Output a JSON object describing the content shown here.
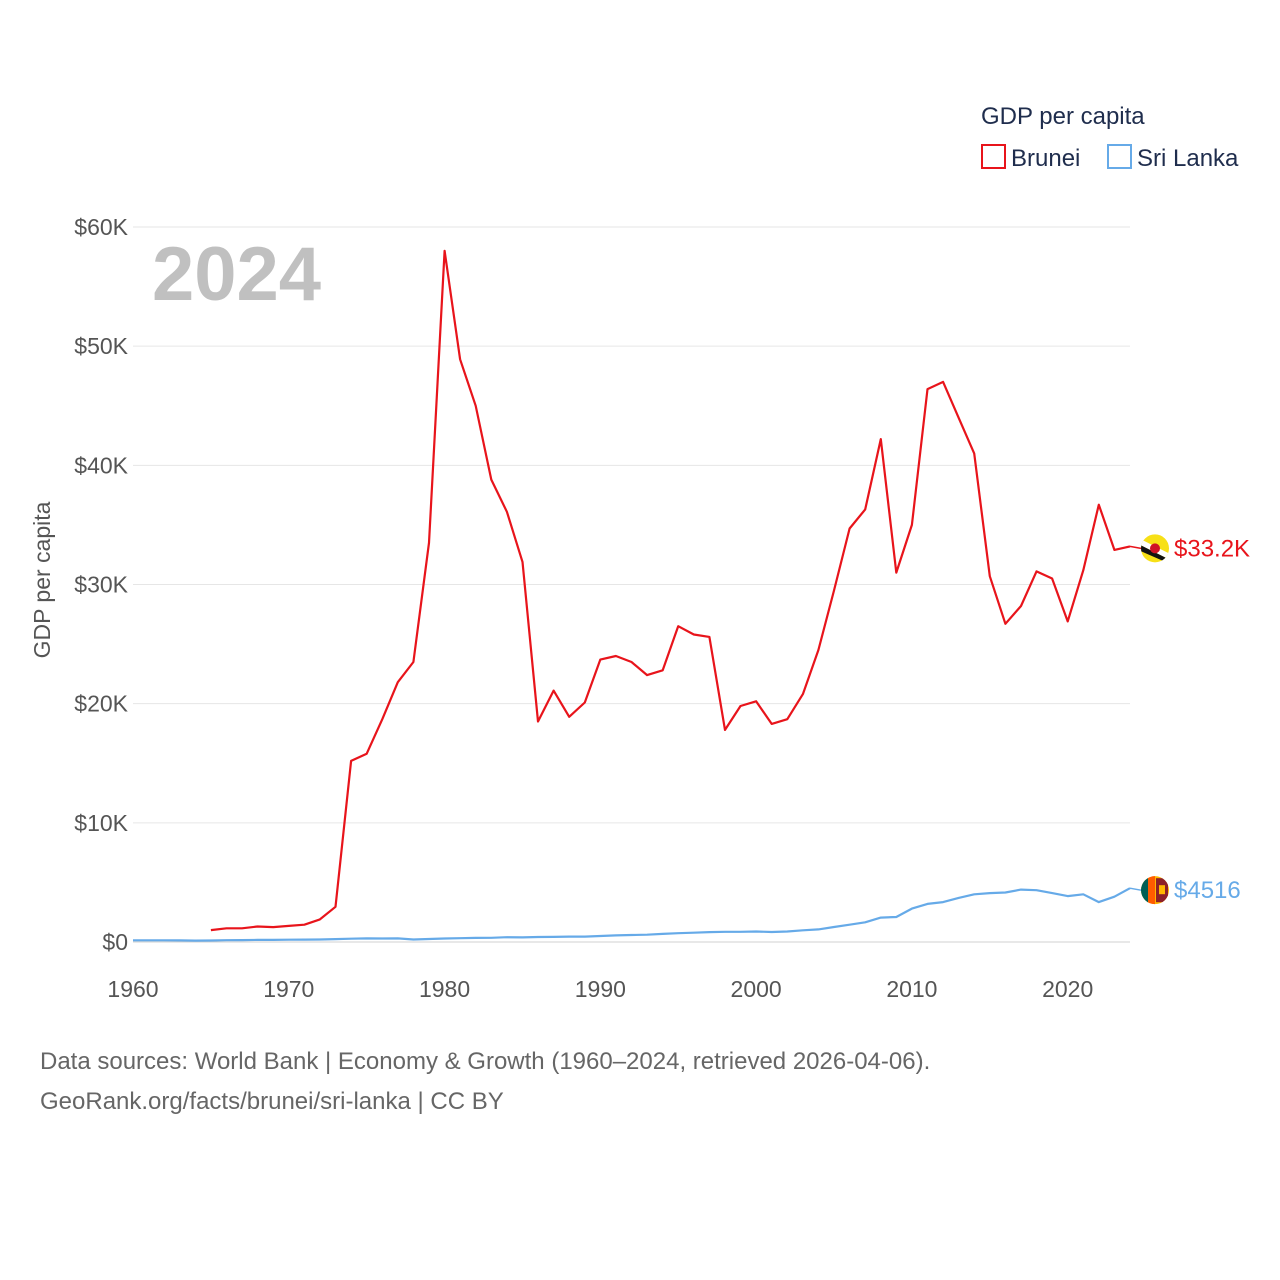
{
  "chart_data": {
    "type": "line",
    "title": "",
    "ylabel": "GDP per capita",
    "xlabel": "",
    "xlim": [
      1960,
      2024
    ],
    "ylim": [
      0,
      60000
    ],
    "year_label": "2024",
    "x_ticks": [
      1960,
      1970,
      1980,
      1990,
      2000,
      2010,
      2020
    ],
    "x_tick_labels": [
      "1960",
      "1970",
      "1980",
      "1990",
      "2000",
      "2010",
      "2020"
    ],
    "y_ticks": [
      0,
      10000,
      20000,
      30000,
      40000,
      50000,
      60000
    ],
    "y_tick_labels": [
      "$0",
      "$10K",
      "$20K",
      "$30K",
      "$40K",
      "$50K",
      "$60K"
    ],
    "legend": {
      "title": "GDP per capita",
      "position": "top-right",
      "entries": [
        "Brunei",
        "Sri Lanka"
      ]
    },
    "series": [
      {
        "name": "Brunei",
        "color": "#e8141b",
        "end_label": "$33.2K",
        "flag": "brunei-flag",
        "points": [
          [
            1965,
            1000
          ],
          [
            1966,
            1150
          ],
          [
            1967,
            1150
          ],
          [
            1968,
            1300
          ],
          [
            1969,
            1250
          ],
          [
            1970,
            1350
          ],
          [
            1971,
            1450
          ],
          [
            1972,
            1900
          ],
          [
            1973,
            2950
          ],
          [
            1974,
            15200
          ],
          [
            1975,
            15800
          ],
          [
            1976,
            18700
          ],
          [
            1977,
            21800
          ],
          [
            1978,
            23500
          ],
          [
            1979,
            33500
          ],
          [
            1980,
            58000
          ],
          [
            1981,
            48900
          ],
          [
            1982,
            45000
          ],
          [
            1983,
            38800
          ],
          [
            1984,
            36100
          ],
          [
            1985,
            31900
          ],
          [
            1986,
            18500
          ],
          [
            1987,
            21100
          ],
          [
            1988,
            18900
          ],
          [
            1989,
            20100
          ],
          [
            1990,
            23700
          ],
          [
            1991,
            24000
          ],
          [
            1992,
            23500
          ],
          [
            1993,
            22400
          ],
          [
            1994,
            22800
          ],
          [
            1995,
            26500
          ],
          [
            1996,
            25800
          ],
          [
            1997,
            25600
          ],
          [
            1998,
            17800
          ],
          [
            1999,
            19800
          ],
          [
            2000,
            20200
          ],
          [
            2001,
            18300
          ],
          [
            2002,
            18700
          ],
          [
            2003,
            20800
          ],
          [
            2004,
            24500
          ],
          [
            2005,
            29500
          ],
          [
            2006,
            34700
          ],
          [
            2007,
            36300
          ],
          [
            2008,
            42200
          ],
          [
            2009,
            31000
          ],
          [
            2010,
            35000
          ],
          [
            2011,
            46400
          ],
          [
            2012,
            47000
          ],
          [
            2013,
            44000
          ],
          [
            2014,
            41000
          ],
          [
            2015,
            30700
          ],
          [
            2016,
            26700
          ],
          [
            2017,
            28200
          ],
          [
            2018,
            31100
          ],
          [
            2019,
            30500
          ],
          [
            2020,
            26900
          ],
          [
            2021,
            31200
          ],
          [
            2022,
            36700
          ],
          [
            2023,
            32900
          ],
          [
            2024,
            33200
          ]
        ]
      },
      {
        "name": "Sri Lanka",
        "color": "#66aae8",
        "end_label": "$4516",
        "flag": "sri-lanka-flag",
        "points": [
          [
            1960,
            145
          ],
          [
            1961,
            145
          ],
          [
            1962,
            145
          ],
          [
            1963,
            135
          ],
          [
            1964,
            120
          ],
          [
            1965,
            130
          ],
          [
            1966,
            150
          ],
          [
            1967,
            160
          ],
          [
            1968,
            180
          ],
          [
            1969,
            180
          ],
          [
            1970,
            190
          ],
          [
            1971,
            200
          ],
          [
            1972,
            210
          ],
          [
            1973,
            240
          ],
          [
            1974,
            280
          ],
          [
            1975,
            300
          ],
          [
            1976,
            290
          ],
          [
            1977,
            300
          ],
          [
            1978,
            210
          ],
          [
            1979,
            250
          ],
          [
            1980,
            290
          ],
          [
            1981,
            320
          ],
          [
            1982,
            340
          ],
          [
            1983,
            350
          ],
          [
            1984,
            400
          ],
          [
            1985,
            390
          ],
          [
            1986,
            420
          ],
          [
            1987,
            430
          ],
          [
            1988,
            450
          ],
          [
            1989,
            450
          ],
          [
            1990,
            500
          ],
          [
            1991,
            550
          ],
          [
            1992,
            590
          ],
          [
            1993,
            610
          ],
          [
            1994,
            680
          ],
          [
            1995,
            740
          ],
          [
            1996,
            780
          ],
          [
            1997,
            830
          ],
          [
            1998,
            860
          ],
          [
            1999,
            860
          ],
          [
            2000,
            880
          ],
          [
            2001,
            840
          ],
          [
            2002,
            880
          ],
          [
            2003,
            980
          ],
          [
            2004,
            1060
          ],
          [
            2005,
            1260
          ],
          [
            2006,
            1450
          ],
          [
            2007,
            1650
          ],
          [
            2008,
            2050
          ],
          [
            2009,
            2100
          ],
          [
            2010,
            2800
          ],
          [
            2011,
            3200
          ],
          [
            2012,
            3350
          ],
          [
            2013,
            3700
          ],
          [
            2014,
            4000
          ],
          [
            2015,
            4100
          ],
          [
            2016,
            4150
          ],
          [
            2017,
            4400
          ],
          [
            2018,
            4350
          ],
          [
            2019,
            4100
          ],
          [
            2020,
            3850
          ],
          [
            2021,
            4000
          ],
          [
            2022,
            3350
          ],
          [
            2023,
            3800
          ],
          [
            2024,
            4516
          ]
        ]
      }
    ]
  },
  "footer": {
    "line1": "Data sources: World Bank | Economy & Growth (1960–2024, retrieved 2026-04-06).",
    "line2": "GeoRank.org/facts/brunei/sri-lanka | CC BY"
  }
}
